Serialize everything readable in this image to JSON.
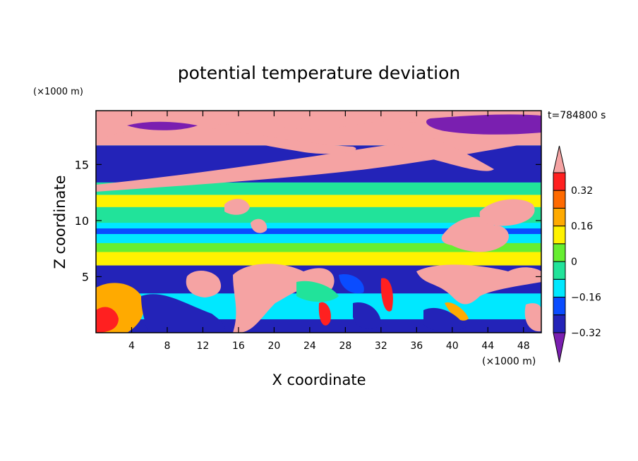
{
  "chart_data": {
    "type": "heatmap",
    "title": "potential temperature deviation",
    "time_label": "t=784800 s",
    "xlabel": "X coordinate",
    "ylabel": "Z coordinate",
    "x_unit": "(×1000 m)",
    "y_unit": "(×1000 m)",
    "xlim": [
      0,
      50
    ],
    "ylim": [
      0,
      19.8
    ],
    "x_ticks": [
      "4",
      "8",
      "12",
      "16",
      "20",
      "24",
      "28",
      "32",
      "36",
      "40",
      "44",
      "48"
    ],
    "y_ticks": [
      "5",
      "10",
      "15"
    ],
    "colorbar": {
      "levels": [
        -0.4,
        -0.32,
        -0.24,
        -0.16,
        -0.08,
        0,
        0.08,
        0.16,
        0.24,
        0.32,
        0.4
      ],
      "labels": [
        "0.32",
        "0.16",
        "0",
        "−0.16",
        "−0.32"
      ],
      "label_values": [
        0.32,
        0.16,
        0,
        -0.16,
        -0.32
      ],
      "colors": [
        "#7a1fb0",
        "#2323b8",
        "#0a4cff",
        "#00e8ff",
        "#21e39a",
        "#66ee30",
        "#fff200",
        "#ffaa00",
        "#ff6a00",
        "#ff2020",
        "#f5a3a3"
      ]
    },
    "layers": [
      {
        "z": [
          0,
          1.2
        ],
        "value": -0.36
      },
      {
        "z": [
          1.2,
          3.5
        ],
        "value": -0.18
      },
      {
        "z": [
          3.5,
          6.0
        ],
        "value": -0.36
      },
      {
        "z": [
          6.0,
          7.2
        ],
        "value": 0.03
      },
      {
        "z": [
          7.2,
          8.0
        ],
        "value": -0.05
      },
      {
        "z": [
          8.0,
          8.8
        ],
        "value": -0.22
      },
      {
        "z": [
          8.8,
          9.3
        ],
        "value": -0.3
      },
      {
        "z": [
          9.3,
          9.8
        ],
        "value": -0.22
      },
      {
        "z": [
          9.8,
          11.2
        ],
        "value": -0.1
      },
      {
        "z": [
          11.2,
          12.3
        ],
        "value": 0.03
      },
      {
        "z": [
          12.3,
          13.4
        ],
        "value": -0.1
      },
      {
        "z": [
          13.4,
          16.7
        ],
        "value": -0.36
      },
      {
        "z": [
          16.7,
          19.8
        ],
        "value": 0.41
      }
    ]
  }
}
